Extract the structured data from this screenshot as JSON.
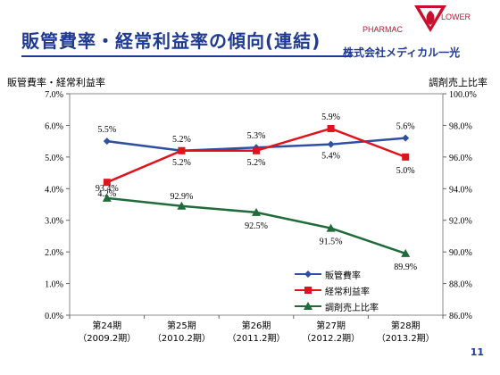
{
  "header": {
    "title": "販管費率・経常利益率の傾向(連結)",
    "logo_brand_left": "PHARMAC",
    "logo_brand_right": "LOWER",
    "company": "株式会社メディカル一光"
  },
  "page_number": "11",
  "colors": {
    "title": "#1f3a93",
    "series_sga": "#2f4f9f",
    "series_ordinary": "#e0121b",
    "series_dispensing": "#1f6b3a"
  },
  "chart_data": {
    "type": "line",
    "left_axis_title": "販管費率・経常利益率",
    "right_axis_title": "調剤売上比率",
    "categories": [
      "第24期\n（2009.2期）",
      "第25期\n（2010.2期）",
      "第26期\n（2011.2期）",
      "第27期\n（2012.2期）",
      "第28期\n（2013.2期）"
    ],
    "y_left": {
      "min": 0,
      "max": 7,
      "step": 1,
      "ticks": [
        "0.0%",
        "1.0%",
        "2.0%",
        "3.0%",
        "4.0%",
        "5.0%",
        "6.0%",
        "7.0%"
      ]
    },
    "y_right": {
      "min": 86,
      "max": 100,
      "step": 2,
      "ticks": [
        "86.0%",
        "88.0%",
        "90.0%",
        "92.0%",
        "94.0%",
        "96.0%",
        "98.0%",
        "100.0%"
      ]
    },
    "series": [
      {
        "name": "販管費率",
        "axis": "left",
        "values": [
          5.5,
          5.2,
          5.3,
          5.4,
          5.6
        ],
        "labels": [
          "5.5%",
          "5.2%",
          "5.3%",
          "5.4%",
          "5.6%"
        ],
        "marker": "diamond"
      },
      {
        "name": "経常利益率",
        "axis": "left",
        "values": [
          4.2,
          5.2,
          5.2,
          5.9,
          5.0
        ],
        "labels": [
          "4.2%",
          "5.2%",
          "5.2%",
          "5.9%",
          "5.0%"
        ],
        "marker": "square"
      },
      {
        "name": "調剤売上比率",
        "axis": "right",
        "values": [
          93.4,
          92.9,
          92.5,
          91.5,
          89.9
        ],
        "labels": [
          "93.4%",
          "92.9%",
          "92.5%",
          "91.5%",
          "89.9%"
        ],
        "marker": "triangle"
      }
    ]
  }
}
